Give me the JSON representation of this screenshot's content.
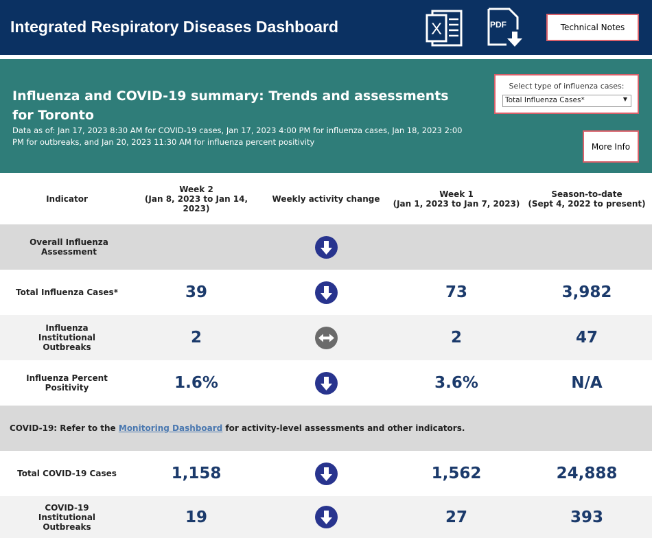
{
  "header": {
    "title": "Integrated Respiratory Diseases Dashboard",
    "technical_notes": "Technical Notes"
  },
  "summary": {
    "title": "Influenza and COVID-19 summary: Trends and assessments for Toronto",
    "subtitle": "Data as of: Jan 17, 2023 8:30 AM for COVID-19 cases, Jan 17, 2023 4:00 PM for influenza cases, Jan 18, 2023 2:00 PM for outbreaks, and Jan 20, 2023 11:30 AM for influenza percent positivity",
    "filter_label": "Select type of influenza cases:",
    "filter_value": "Total Influenza Cases*",
    "more_info": "More Info"
  },
  "table": {
    "headers": [
      {
        "title": "Indicator"
      },
      {
        "title": "Week 2",
        "range": "(Jan 8, 2023 to Jan 14, 2023)"
      },
      {
        "title": "Weekly activity change"
      },
      {
        "title": "Week 1",
        "range": "(Jan 1, 2023 to Jan 7, 2023)"
      },
      {
        "title": "Season-to-date",
        "range": "(Sept 4, 2022 to present)"
      }
    ],
    "rows": [
      {
        "indicator": "Overall Influenza Assessment"
      },
      {
        "indicator": "Total Influenza Cases*",
        "week2": "39",
        "week1": "73",
        "season": "3,982"
      },
      {
        "indicator": "Influenza Institutional Outbreaks",
        "week2": "2",
        "week1": "2",
        "season": "47"
      },
      {
        "indicator": "Influenza Percent Positivity",
        "week2": "1.6%",
        "week1": "3.6%",
        "season": "N/A"
      },
      {
        "note": [
          "COVID-19: Refer to the",
          "Monitoring Dashboard",
          "for activity-level assessments and other indicators."
        ]
      },
      {
        "indicator": "Total COVID-19 Cases",
        "week2": "1,158",
        "week1": "1,562",
        "season": "24,888"
      },
      {
        "indicator": "COVID-19 Institutional Outbreaks",
        "week2": "19",
        "week1": "27",
        "season": "393"
      }
    ]
  }
}
